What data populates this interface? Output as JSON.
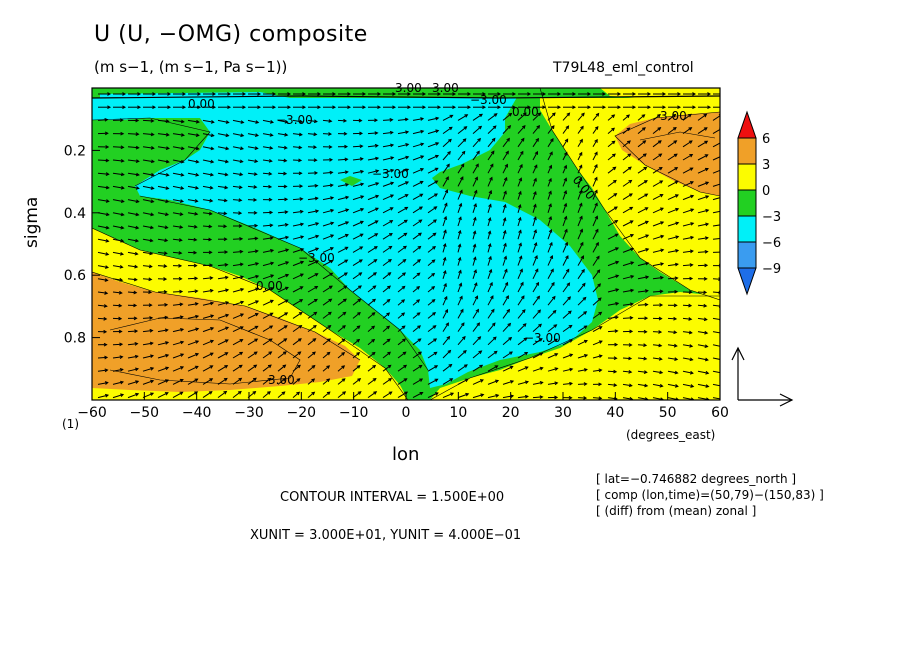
{
  "chart_data": {
    "type": "heatmap",
    "title": "U (U, −OMG) composite",
    "subtitle": "(m s−1, (m s−1, Pa s−1))",
    "run_name": "T79L48_eml_control",
    "xlabel": "lon",
    "xunits": "(degrees_east)",
    "ylabel": "sigma",
    "xlim": [
      -60,
      60
    ],
    "ylim": [
      1.0,
      0.0
    ],
    "x_ticks": [
      -60,
      -50,
      -40,
      -30,
      -20,
      -10,
      0,
      10,
      20,
      30,
      40,
      50,
      60
    ],
    "x_tick_labels": [
      "−60",
      "−50",
      "−40",
      "−30",
      "−20",
      "−10",
      "0",
      "10",
      "20",
      "30",
      "40",
      "50",
      "60"
    ],
    "y_ticks": [
      0.2,
      0.4,
      0.6,
      0.8
    ],
    "y_tick_labels": [
      "0.2",
      "0.4",
      "0.6",
      "0.8"
    ],
    "y_corner_label": "(1)",
    "colorbar": {
      "levels": [
        -9,
        -6,
        -3,
        0,
        3,
        6
      ],
      "labels": [
        "6",
        "3",
        "0",
        "−3",
        "−6",
        "−9"
      ],
      "colors": {
        "below_-9": "#1e6ee8",
        "-9_to_-6": "#3a9cf0",
        "-6_to_-3": "#00f0f8",
        "-3_to_0": "#22d022",
        "0_to_3": "#fcfc00",
        "3_to_6": "#f0a028",
        "above_6": "#ee1010"
      }
    },
    "contour_labels": [
      "3.00",
      "0.00",
      "−3.00",
      "−3.00",
      "3.00",
      "0.00",
      "0.00",
      "−3.00",
      "−3.00",
      "0.00",
      "−3.00",
      "3.00",
      "3.00"
    ],
    "contour_interval": "CONTOUR INTERVAL = 1.500E+00",
    "vector_units": "XUNIT = 3.000E+01, YUNIT = 4.000E−01",
    "notes": [
      "[ lat=−0.746882 degrees_north ]",
      "[ comp (lon,time)=(50,79)−(150,83) ]",
      "[ (diff) from (mean) zonal ]"
    ]
  }
}
